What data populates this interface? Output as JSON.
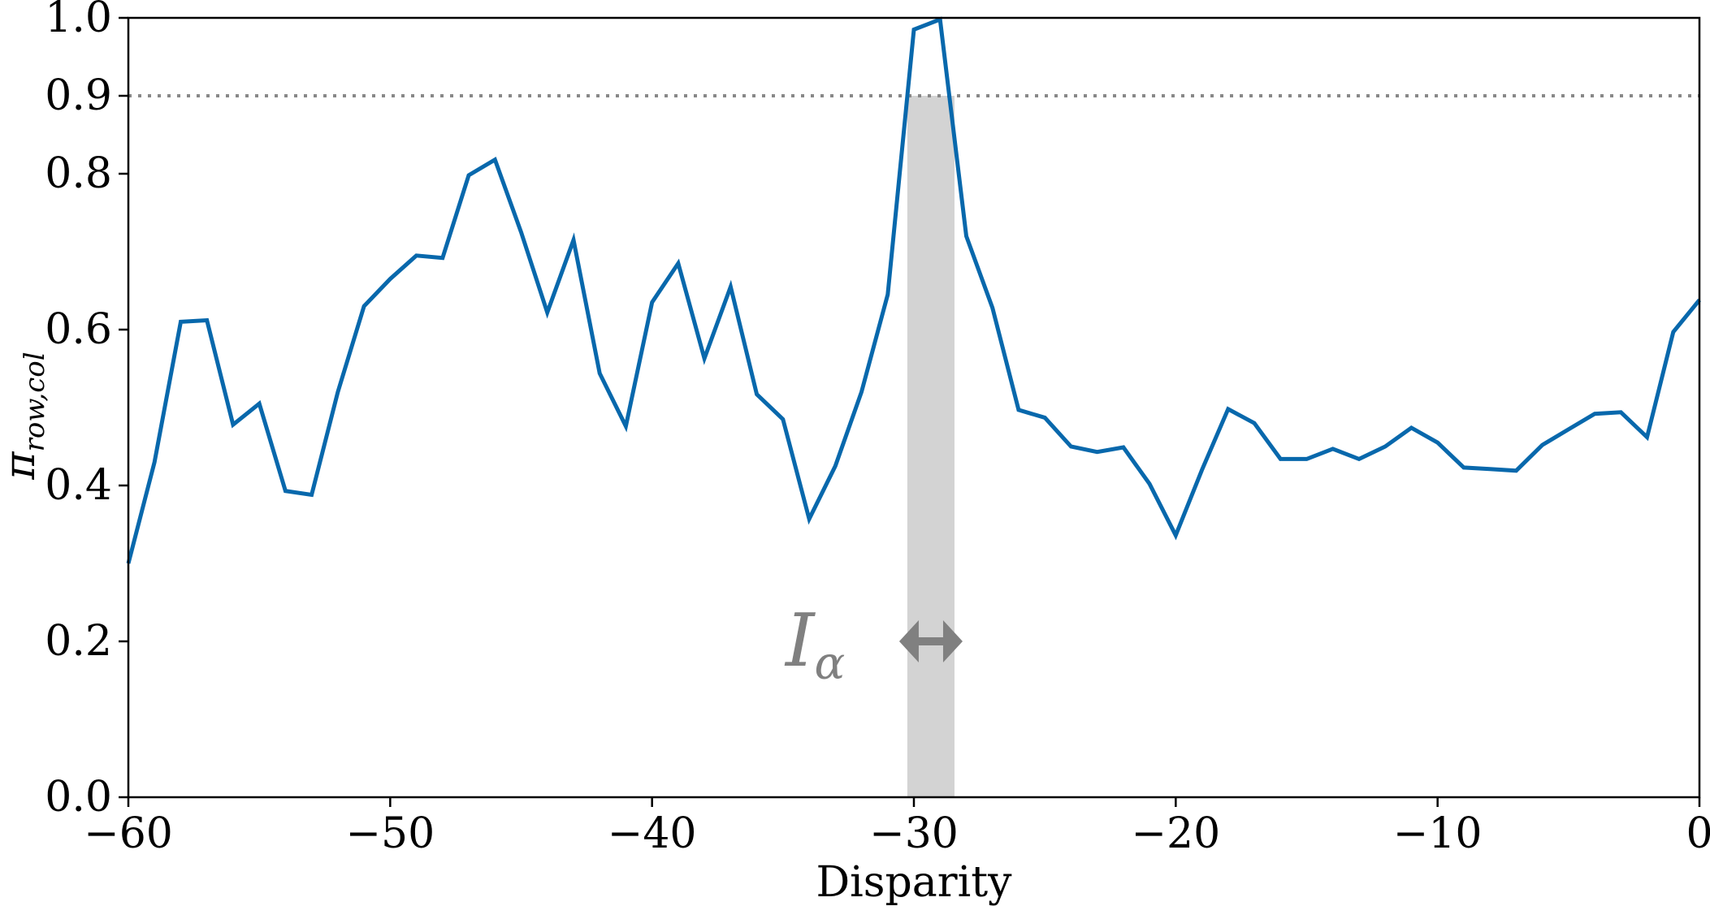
{
  "chart_data": {
    "type": "line",
    "xlabel": "Disparity",
    "ylabel": "π",
    "ylabel_subscript": "row,col",
    "xlim": [
      -60,
      0
    ],
    "ylim": [
      0.0,
      1.0
    ],
    "xticks": [
      -60,
      -50,
      -40,
      -30,
      -20,
      -10,
      0
    ],
    "xtick_labels": [
      "−60",
      "−50",
      "−40",
      "−30",
      "−20",
      "−10",
      "0"
    ],
    "yticks": [
      0.0,
      0.2,
      0.4,
      0.6,
      0.8,
      0.9,
      1.0
    ],
    "ytick_labels": [
      "0.0",
      "0.2",
      "0.4",
      "0.6",
      "0.8",
      "0.9",
      "1.0"
    ],
    "grid": false,
    "threshold": {
      "y": 0.9,
      "style": "dotted",
      "color": "#888888"
    },
    "interval": {
      "x_start": -30.25,
      "x_end": -28.45,
      "y_top": 0.9,
      "color": "#d3d3d3"
    },
    "annotation": {
      "text": "I",
      "subscript": "α",
      "arrow": "double-headed",
      "y": 0.2,
      "color": "#808080"
    },
    "series": [
      {
        "color": "#0868ac",
        "x": [
          -60,
          -59,
          -58,
          -57,
          -56,
          -55,
          -54,
          -53,
          -52,
          -51,
          -50,
          -49,
          -48,
          -47,
          -46,
          -45,
          -44,
          -43,
          -42,
          -41,
          -40,
          -39,
          -38,
          -37,
          -36,
          -35,
          -34,
          -33,
          -32,
          -31,
          -30,
          -29,
          -28,
          -27,
          -26,
          -25,
          -24,
          -23,
          -22,
          -21,
          -20,
          -19,
          -18,
          -17,
          -16,
          -15,
          -14,
          -13,
          -12,
          -11,
          -10,
          -9,
          -8,
          -7,
          -6,
          -5,
          -4,
          -3,
          -2,
          -1,
          0
        ],
        "y": [
          0.3,
          0.43,
          0.61,
          0.612,
          0.478,
          0.505,
          0.393,
          0.388,
          0.52,
          0.63,
          0.665,
          0.695,
          0.692,
          0.798,
          0.818,
          0.725,
          0.622,
          0.715,
          0.544,
          0.476,
          0.635,
          0.685,
          0.563,
          0.655,
          0.517,
          0.485,
          0.357,
          0.425,
          0.52,
          0.645,
          0.985,
          0.998,
          0.72,
          0.628,
          0.497,
          0.487,
          0.45,
          0.443,
          0.449,
          0.402,
          0.336,
          0.42,
          0.498,
          0.48,
          0.434,
          0.434,
          0.447,
          0.434,
          0.45,
          0.474,
          0.455,
          0.423,
          0.421,
          0.419,
          0.452,
          0.472,
          0.492,
          0.494,
          0.462,
          0.597,
          0.638
        ]
      }
    ]
  }
}
